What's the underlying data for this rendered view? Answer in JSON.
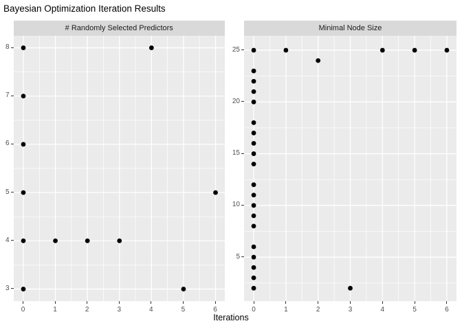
{
  "title": "Bayesian Optimization Iteration Results",
  "xlabel": "Iterations",
  "colors": {
    "background": "#FFFFFF",
    "panel_bg": "#EBEBEB",
    "strip_bg": "#D9D9D9",
    "grid": "#FFFFFF",
    "point": "#000000",
    "axis_text": "#4D4D4D",
    "strip_text": "#1A1A1A",
    "tick_mark": "#333333",
    "title_text": "#000000"
  },
  "chart_data": [
    {
      "type": "scatter",
      "title": "# Randomly Selected Predictors",
      "xlabel": "Iterations",
      "ylabel": "",
      "x_ticks": [
        0,
        1,
        2,
        3,
        4,
        5,
        6
      ],
      "y_ticks": [
        3,
        4,
        5,
        6,
        7,
        8
      ],
      "xlim": [
        -0.3,
        6.3
      ],
      "ylim": [
        2.75,
        8.25
      ],
      "grid": true,
      "points": [
        [
          0,
          3
        ],
        [
          0,
          4
        ],
        [
          0,
          5
        ],
        [
          0,
          6
        ],
        [
          0,
          7
        ],
        [
          0,
          8
        ],
        [
          1,
          4
        ],
        [
          2,
          4
        ],
        [
          3,
          4
        ],
        [
          4,
          8
        ],
        [
          5,
          3
        ],
        [
          6,
          5
        ]
      ]
    },
    {
      "type": "scatter",
      "title": "Minimal Node Size",
      "xlabel": "Iterations",
      "ylabel": "",
      "x_ticks": [
        0,
        1,
        2,
        3,
        4,
        5,
        6
      ],
      "y_ticks": [
        5,
        10,
        15,
        20,
        25
      ],
      "xlim": [
        -0.3,
        6.3
      ],
      "ylim": [
        0.75,
        26.4
      ],
      "grid": true,
      "points": [
        [
          0,
          2
        ],
        [
          0,
          3
        ],
        [
          0,
          4
        ],
        [
          0,
          5
        ],
        [
          0,
          6
        ],
        [
          0,
          8
        ],
        [
          0,
          9
        ],
        [
          0,
          10
        ],
        [
          0,
          11
        ],
        [
          0,
          12
        ],
        [
          0,
          14
        ],
        [
          0,
          15
        ],
        [
          0,
          16
        ],
        [
          0,
          17
        ],
        [
          0,
          18
        ],
        [
          0,
          20
        ],
        [
          0,
          21
        ],
        [
          0,
          22
        ],
        [
          0,
          23
        ],
        [
          0,
          25
        ],
        [
          1,
          25
        ],
        [
          2,
          24
        ],
        [
          3,
          2
        ],
        [
          4,
          25
        ],
        [
          5,
          25
        ],
        [
          6,
          25
        ]
      ]
    }
  ]
}
